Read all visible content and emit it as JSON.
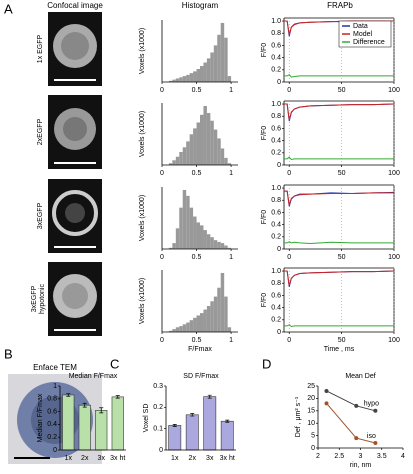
{
  "figure": {
    "panel_labels": [
      "A",
      "B",
      "C",
      "D"
    ],
    "columns": [
      "Confocal image",
      "Histogram",
      "FRAPb"
    ],
    "rows": [
      [
        "1x EGFP"
      ],
      [
        "2xEGFP"
      ],
      [
        "3xEGFP"
      ],
      [
        "3xEGFP",
        "hypotonic"
      ]
    ],
    "tem_label": "Enface TEM"
  },
  "chart_data": [
    {
      "type": "histogram",
      "ylabel": "Voxels (x1000)",
      "color": "#999999",
      "bins": [
        0,
        0.05,
        0.1,
        0.15,
        0.2,
        0.25,
        0.3,
        0.35,
        0.4,
        0.45,
        0.5,
        0.55,
        0.6,
        0.65,
        0.7,
        0.75,
        0.8,
        0.85,
        0.9,
        0.95,
        1,
        1.05,
        1.1
      ],
      "values": [
        0,
        0,
        2,
        4,
        6,
        8,
        10,
        12,
        15,
        18,
        22,
        27,
        33,
        40,
        50,
        62,
        80,
        100,
        75,
        10,
        0,
        0
      ],
      "xlim": [
        0,
        1.1
      ],
      "xticks": [
        0,
        0.5,
        1
      ],
      "ylim": [
        0,
        105
      ]
    },
    {
      "type": "histogram",
      "ylabel": "Voxels (x1000)",
      "color": "#999999",
      "bins": [
        0,
        0.05,
        0.1,
        0.15,
        0.2,
        0.25,
        0.3,
        0.35,
        0.4,
        0.45,
        0.5,
        0.55,
        0.6,
        0.65,
        0.7,
        0.75,
        0.8,
        0.85,
        0.9,
        0.95,
        1,
        1.05,
        1.1
      ],
      "values": [
        0,
        0,
        3,
        8,
        14,
        22,
        30,
        40,
        52,
        62,
        72,
        85,
        100,
        88,
        75,
        60,
        45,
        28,
        12,
        3,
        0,
        0
      ],
      "xlim": [
        0,
        1.1
      ],
      "xticks": [
        0,
        0.5,
        1
      ],
      "ylim": [
        0,
        105
      ]
    },
    {
      "type": "histogram",
      "ylabel": "Voxels (x1000)",
      "color": "#999999",
      "bins": [
        0,
        0.05,
        0.1,
        0.15,
        0.2,
        0.25,
        0.3,
        0.35,
        0.4,
        0.45,
        0.5,
        0.55,
        0.6,
        0.65,
        0.7,
        0.75,
        0.8,
        0.85,
        0.9,
        0.95,
        1,
        1.05,
        1.1
      ],
      "values": [
        0,
        0,
        2,
        10,
        35,
        70,
        100,
        90,
        70,
        55,
        45,
        40,
        32,
        25,
        20,
        15,
        12,
        10,
        6,
        2,
        0,
        0
      ],
      "xlim": [
        0,
        1.1
      ],
      "xticks": [
        0,
        0.5,
        1
      ],
      "ylim": [
        0,
        105
      ]
    },
    {
      "type": "histogram",
      "ylabel": "Voxels (x1000)",
      "xlabel": "F/Fmax",
      "color": "#999999",
      "bins": [
        0,
        0.05,
        0.1,
        0.15,
        0.2,
        0.25,
        0.3,
        0.35,
        0.4,
        0.45,
        0.5,
        0.55,
        0.6,
        0.65,
        0.7,
        0.75,
        0.8,
        0.85,
        0.9,
        0.95,
        1,
        1.05,
        1.1
      ],
      "values": [
        0,
        0,
        2,
        5,
        8,
        10,
        13,
        16,
        20,
        24,
        28,
        32,
        38,
        44,
        52,
        60,
        75,
        100,
        60,
        8,
        0,
        0
      ],
      "xlim": [
        0,
        1.1
      ],
      "xticks": [
        0,
        0.5,
        1
      ],
      "ylim": [
        0,
        105
      ]
    },
    {
      "type": "line",
      "ylabel": "F/F0",
      "legend": "upper right",
      "grid": "x",
      "box": true,
      "x": [
        -5,
        -2,
        0,
        2,
        5,
        10,
        20,
        40,
        60,
        80,
        100
      ],
      "series": [
        {
          "name": "Data",
          "color": "#2233aa",
          "values": [
            1,
            1,
            0.75,
            0.9,
            0.95,
            0.97,
            0.98,
            0.99,
            0.99,
            1,
            1
          ]
        },
        {
          "name": "Model",
          "color": "#cc2222",
          "values": [
            1,
            1,
            0.78,
            0.9,
            0.94,
            0.97,
            0.98,
            0.99,
            1,
            1,
            1
          ]
        },
        {
          "name": "Difference",
          "color": "#33aa33",
          "values": [
            0.1,
            0.1,
            0.12,
            0.08,
            0.09,
            0.1,
            0.1,
            0.1,
            0.1,
            0.1,
            0.1
          ]
        }
      ],
      "xlim": [
        -5,
        100
      ],
      "xticks": [
        0,
        50,
        100
      ],
      "ylim": [
        0,
        1.05
      ],
      "yticks": [
        0,
        0.2,
        0.4,
        0.6,
        0.8,
        {
          "value": 1,
          "label": "1.0"
        }
      ]
    },
    {
      "type": "line",
      "ylabel": "F/F0",
      "grid": "x",
      "box": true,
      "x": [
        -5,
        -2,
        0,
        2,
        5,
        10,
        20,
        40,
        60,
        80,
        100
      ],
      "series": [
        {
          "color": "#2233aa",
          "values": [
            1,
            1,
            0.72,
            0.86,
            0.92,
            0.95,
            0.97,
            0.98,
            0.99,
            0.99,
            1
          ]
        },
        {
          "color": "#cc2222",
          "values": [
            1,
            1,
            0.74,
            0.87,
            0.92,
            0.95,
            0.97,
            0.98,
            0.99,
            0.99,
            1
          ]
        },
        {
          "color": "#33aa33",
          "values": [
            0.1,
            0.1,
            0.13,
            0.09,
            0.1,
            0.1,
            0.1,
            0.1,
            0.1,
            0.1,
            0.1
          ]
        }
      ],
      "xlim": [
        -5,
        100
      ],
      "xticks": [
        0,
        50,
        100
      ],
      "ylim": [
        0,
        1.05
      ],
      "yticks": [
        0,
        0.2,
        0.4,
        0.6,
        0.8,
        {
          "value": 1,
          "label": "1.0"
        }
      ]
    },
    {
      "type": "line",
      "ylabel": "F/F0",
      "grid": "x",
      "box": true,
      "x": [
        -5,
        -2,
        0,
        2,
        5,
        10,
        20,
        40,
        60,
        80,
        100
      ],
      "series": [
        {
          "color": "#2233aa",
          "values": [
            0.95,
            0.95,
            0.7,
            0.82,
            0.87,
            0.9,
            0.9,
            0.92,
            0.91,
            0.92,
            0.93
          ]
        },
        {
          "color": "#cc2222",
          "values": [
            0.95,
            0.95,
            0.72,
            0.83,
            0.87,
            0.89,
            0.9,
            0.91,
            0.91,
            0.92,
            0.92
          ]
        },
        {
          "color": "#33aa33",
          "values": [
            0.1,
            0.1,
            0.12,
            0.1,
            0.11,
            0.1,
            0.09,
            0.11,
            0.1,
            0.1,
            0.1
          ]
        }
      ],
      "xlim": [
        -5,
        100
      ],
      "xticks": [
        0,
        50,
        100
      ],
      "ylim": [
        0,
        1.05
      ],
      "yticks": [
        0,
        0.2,
        0.4,
        0.6,
        0.8,
        {
          "value": 1,
          "label": "1.0"
        }
      ]
    },
    {
      "type": "line",
      "ylabel": "F/F0",
      "xlabel": "Time , ms",
      "grid": "x",
      "box": true,
      "x": [
        -5,
        -2,
        0,
        2,
        5,
        10,
        20,
        40,
        60,
        80,
        100
      ],
      "series": [
        {
          "color": "#2233aa",
          "values": [
            1,
            1,
            0.74,
            0.88,
            0.93,
            0.96,
            0.97,
            0.98,
            0.99,
            0.99,
            1
          ]
        },
        {
          "color": "#cc2222",
          "values": [
            1,
            1,
            0.76,
            0.88,
            0.93,
            0.96,
            0.97,
            0.98,
            0.99,
            0.99,
            1
          ]
        },
        {
          "color": "#33aa33",
          "values": [
            0.1,
            0.1,
            0.12,
            0.09,
            0.1,
            0.1,
            0.1,
            0.1,
            0.1,
            0.1,
            0.1
          ]
        }
      ],
      "xlim": [
        -5,
        100
      ],
      "xticks": [
        0,
        50,
        100
      ],
      "ylim": [
        0,
        1.05
      ],
      "yticks": [
        0,
        0.2,
        0.4,
        0.6,
        0.8,
        {
          "value": 1,
          "label": "1.0"
        }
      ]
    },
    {
      "type": "bar",
      "title": "Median F/Fmax",
      "ylabel": "Median F/Fmax",
      "color": "#b8e0a8",
      "categories": [
        "1x",
        "2x",
        "3x",
        "3x ht"
      ],
      "values": [
        0.86,
        0.7,
        0.62,
        0.83
      ],
      "errors": [
        0.02,
        0.03,
        0.04,
        0.02
      ],
      "ylim": [
        0,
        1
      ],
      "yticks": [
        0,
        0.2,
        0.4,
        0.6,
        0.8,
        1
      ]
    },
    {
      "type": "bar",
      "title": "SD F/Fmax",
      "ylabel": "Voxel SD",
      "color": "#aaa8de",
      "categories": [
        "1x",
        "2x",
        "3x",
        "3x ht"
      ],
      "values": [
        0.115,
        0.165,
        0.25,
        0.135
      ],
      "errors": [
        0.005,
        0.006,
        0.007,
        0.005
      ],
      "ylim": [
        0,
        0.3
      ],
      "yticks": [
        0,
        0.1,
        0.2,
        0.3
      ]
    },
    {
      "type": "line",
      "title": "Mean Def",
      "ylabel": "Def , μm² s⁻¹",
      "xlabel": "rin, nm",
      "markers": true,
      "x": [
        2.2,
        2.9,
        3.35
      ],
      "series": [
        {
          "name": "hypo",
          "color": "#444444",
          "values": [
            23,
            17,
            15
          ]
        },
        {
          "name": "iso",
          "color": "#a0522d",
          "values": [
            18,
            4,
            2
          ]
        }
      ],
      "xlim": [
        2,
        4
      ],
      "xticks": [
        2,
        2.5,
        3,
        3.5,
        4
      ],
      "ylim": [
        0,
        25
      ],
      "yticks": [
        0,
        5,
        10,
        15,
        20,
        25
      ]
    }
  ]
}
